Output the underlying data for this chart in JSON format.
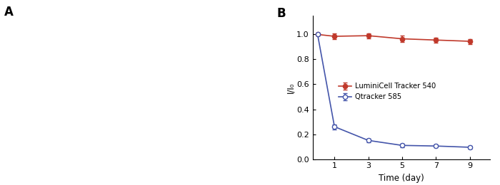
{
  "red_x": [
    1,
    3,
    5,
    7,
    9
  ],
  "red_y": [
    0.985,
    0.99,
    0.965,
    0.955,
    0.945
  ],
  "red_yerr": [
    0.025,
    0.02,
    0.025,
    0.02,
    0.02
  ],
  "blue_x": [
    1,
    3,
    5,
    7,
    9
  ],
  "blue_y": [
    0.26,
    0.15,
    0.11,
    0.105,
    0.095
  ],
  "blue_yerr": [
    0.02,
    0.015,
    0.015,
    0.01,
    0.01
  ],
  "red_start_x": [
    0
  ],
  "red_start_y": [
    1.0
  ],
  "blue_start_x": [
    0
  ],
  "blue_start_y": [
    1.0
  ],
  "red_label": "LuminiCell Tracker 540",
  "blue_label": "Qtracker 585",
  "xlabel": "Time (day)",
  "ylabel": "I/I₀",
  "xlim": [
    -0.3,
    10.2
  ],
  "ylim": [
    0.0,
    1.15
  ],
  "yticks": [
    0.0,
    0.2,
    0.4,
    0.6,
    0.8,
    1.0
  ],
  "xticks": [
    1,
    3,
    5,
    7,
    9
  ],
  "red_color": "#c0392b",
  "blue_color": "#4455aa",
  "label_A": "A",
  "label_B": "B"
}
